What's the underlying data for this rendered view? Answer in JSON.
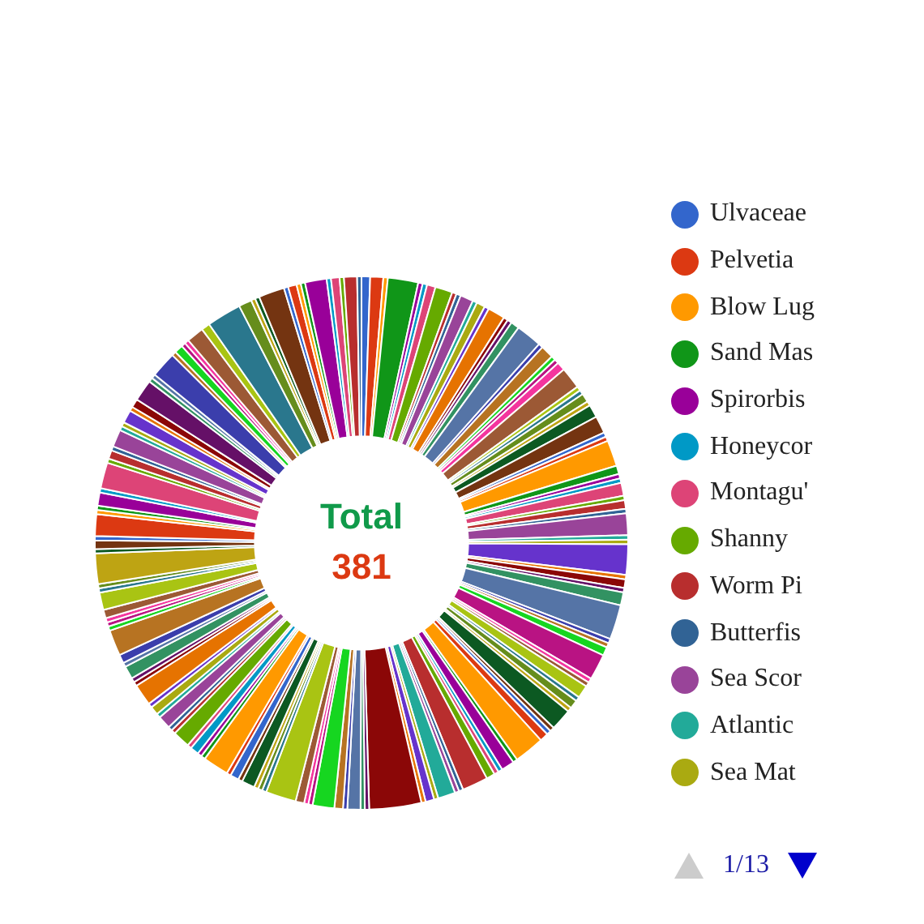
{
  "chart_data": {
    "type": "donut",
    "categories": [
      "Ulvaceae",
      "Pelvetia",
      "Blow Lug",
      "Sand Mas",
      "Spirorbis",
      "Honeycor",
      "Montagu'",
      "Shanny",
      "Worm Pi",
      "Butterfis",
      "Sea Scor",
      "Atlantic",
      "Sea Mat",
      null,
      null,
      null,
      null,
      null,
      null,
      null,
      null,
      null,
      null,
      null,
      null,
      null,
      null,
      null,
      null,
      null,
      null,
      null,
      null,
      null,
      null,
      null,
      null,
      null,
      null,
      null,
      null,
      null,
      null,
      null,
      null,
      null,
      null,
      null,
      null,
      null,
      null,
      null,
      null,
      null,
      null,
      null,
      null,
      null,
      null,
      null,
      null,
      null,
      null,
      null,
      null,
      null,
      null,
      null,
      null,
      null,
      null,
      null,
      null,
      null,
      null,
      null,
      null,
      null,
      null,
      null,
      null,
      null,
      null,
      null,
      null,
      null,
      null,
      null,
      null,
      null,
      null,
      null,
      null,
      null,
      null,
      null,
      null,
      null,
      null,
      null,
      null,
      null,
      null,
      null,
      null,
      null,
      null,
      null,
      null,
      null,
      null,
      null,
      null,
      null,
      null,
      null,
      null,
      null,
      null,
      null,
      null,
      null,
      null,
      null,
      null,
      null,
      null,
      null,
      null,
      null,
      null,
      null,
      null,
      null,
      null,
      null,
      null,
      null,
      null,
      null,
      null,
      null,
      null,
      null,
      null,
      null,
      null,
      null,
      null,
      null,
      null,
      null,
      null,
      null,
      null,
      null,
      null,
      null,
      null,
      null,
      null,
      null,
      null,
      null,
      null
    ],
    "values": [
      0.52,
      0.79,
      0.27,
      1.84,
      0.27,
      0.27,
      0.52,
      1.05,
      0.27,
      0.27,
      0.79,
      0.27,
      0.52,
      0.27,
      1.05,
      0.27,
      0.27,
      0.52,
      1.57,
      0.27,
      0.79,
      0.27,
      0.27,
      0.52,
      1.31,
      0.27,
      0.27,
      0.52,
      0.27,
      0.79,
      1.05,
      0.27,
      0.27,
      1.57,
      0.52,
      0.27,
      0.27,
      0.79,
      0.27,
      0.52,
      0.27,
      1.31,
      0.27,
      0.27,
      1.84,
      0.27,
      0.52,
      0.27,
      0.79,
      2.1,
      0.27,
      0.27,
      0.52,
      1.57,
      0.27,
      0.27,
      0.79,
      0.27,
      0.52,
      0.27,
      1.31,
      0.27,
      0.27,
      0.52,
      1.84,
      0.27,
      0.79,
      0.27,
      0.27,
      0.52,
      1.57,
      0.26,
      0.26,
      1.05,
      0.26,
      0.52,
      0.26,
      3.15,
      0.26,
      0.26,
      0.79,
      0.26,
      0.52,
      1.31,
      0.26,
      0.26,
      0.52,
      1.84,
      0.26,
      0.26,
      0.26,
      0.79,
      0.26,
      0.52,
      0.26,
      1.57,
      0.26,
      0.26,
      0.52,
      0.26,
      1.05,
      0.26,
      0.26,
      0.79,
      0.26,
      0.52,
      0.26,
      1.31,
      0.26,
      0.26,
      0.79,
      0.26,
      0.52,
      1.57,
      0.26,
      0.26,
      0.26,
      0.52,
      1.05,
      0.26,
      0.26,
      1.84,
      0.26,
      0.52,
      0.26,
      1.31,
      0.26,
      0.26,
      0.79,
      0.26,
      1.57,
      0.26,
      0.52,
      0.26,
      1.05,
      0.26,
      0.26,
      0.79,
      0.26,
      0.52,
      1.31,
      0.26,
      0.26,
      1.57,
      0.26,
      0.52,
      0.26,
      0.26,
      1.05,
      0.52,
      2.1,
      0.79,
      0.26,
      0.26,
      1.57,
      0.26,
      0.52,
      0.26,
      0.26,
      1.31,
      0.26,
      0.52,
      0.26,
      0.79,
      0.26
    ],
    "colors": [
      "#3366cc",
      "#dc3912",
      "#ff9900",
      "#109618",
      "#990099",
      "#0099c6",
      "#dd4477",
      "#66aa00",
      "#b82e2e",
      "#316395",
      "#994499",
      "#22aa99",
      "#aaaa11",
      "#6633cc",
      "#e67300",
      "#8b0707",
      "#651067",
      "#329262",
      "#5574a6",
      "#3b3eac",
      "#b77322",
      "#16d620",
      "#b91383",
      "#f4359e",
      "#9c5935",
      "#a9c413",
      "#2a778d",
      "#668d1c",
      "#bea413",
      "#0c5922",
      "#743411",
      "#3366cc",
      "#dc3912",
      "#ff9900",
      "#109618",
      "#990099",
      "#0099c6",
      "#dd4477",
      "#66aa00",
      "#b82e2e",
      "#316395",
      "#994499",
      "#22aa99",
      "#aaaa11",
      "#6633cc",
      "#e67300",
      "#8b0707",
      "#651067",
      "#329262",
      "#5574a6",
      "#3b3eac",
      "#b77322",
      "#16d620",
      "#b91383",
      "#f4359e",
      "#9c5935",
      "#a9c413",
      "#2a778d",
      "#668d1c",
      "#bea413",
      "#0c5922",
      "#743411",
      "#3366cc",
      "#dc3912",
      "#ff9900",
      "#109618",
      "#990099",
      "#0099c6",
      "#dd4477",
      "#66aa00",
      "#b82e2e",
      "#316395",
      "#994499",
      "#22aa99",
      "#aaaa11",
      "#6633cc",
      "#e67300",
      "#8b0707",
      "#651067",
      "#329262",
      "#5574a6",
      "#3b3eac",
      "#b77322",
      "#16d620",
      "#b91383",
      "#f4359e",
      "#9c5935",
      "#a9c413",
      "#2a778d",
      "#668d1c",
      "#bea413",
      "#0c5922",
      "#743411",
      "#3366cc",
      "#dc3912",
      "#ff9900",
      "#109618",
      "#990099",
      "#0099c6",
      "#dd4477",
      "#66aa00",
      "#b82e2e",
      "#316395",
      "#994499",
      "#22aa99",
      "#aaaa11",
      "#6633cc",
      "#e67300",
      "#8b0707",
      "#651067",
      "#329262",
      "#5574a6",
      "#3b3eac",
      "#b77322",
      "#16d620",
      "#b91383",
      "#f4359e",
      "#9c5935",
      "#a9c413",
      "#2a778d",
      "#668d1c",
      "#bea413",
      "#0c5922",
      "#743411",
      "#3366cc",
      "#dc3912",
      "#ff9900",
      "#109618",
      "#990099",
      "#0099c6",
      "#dd4477",
      "#66aa00",
      "#b82e2e",
      "#316395",
      "#994499",
      "#22aa99",
      "#aaaa11",
      "#6633cc",
      "#e67300",
      "#8b0707",
      "#651067",
      "#329262",
      "#5574a6",
      "#3b3eac",
      "#b77322",
      "#16d620",
      "#b91383",
      "#f4359e",
      "#9c5935",
      "#a9c413",
      "#2a778d",
      "#668d1c",
      "#bea413",
      "#0c5922",
      "#743411",
      "#3366cc",
      "#dc3912",
      "#ff9900",
      "#109618",
      "#990099",
      "#0099c6",
      "#dd4477",
      "#66aa00",
      "#b82e2e",
      "#316395"
    ],
    "annotations": [
      "Total",
      "381",
      "1/13"
    ],
    "legend": "right"
  }
}
